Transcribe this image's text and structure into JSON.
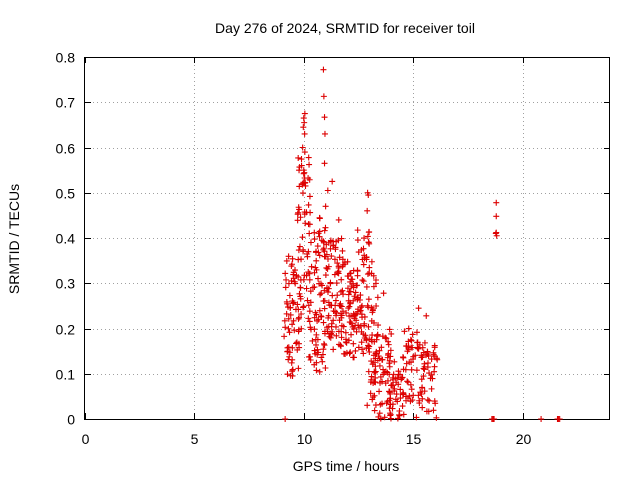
{
  "chart_data": {
    "type": "scatter",
    "title": "Day 276 of 2024, SRMTID for receiver toil",
    "xlabel": "GPS time / hours",
    "ylabel": "SRMTID / TECUs",
    "xlim": [
      0,
      24
    ],
    "ylim": [
      0,
      0.8
    ],
    "xticks": [
      0,
      5,
      10,
      15,
      20
    ],
    "xtick_labels": [
      "0",
      "5",
      "10",
      "15",
      "20"
    ],
    "yticks": [
      0,
      0.1,
      0.2,
      0.3,
      0.4,
      0.5,
      0.6,
      0.7,
      0.8
    ],
    "ytick_labels": [
      "0",
      "0.1",
      "0.2",
      "0.3",
      "0.4",
      "0.5",
      "0.6",
      "0.7",
      "0.8"
    ],
    "grid": true,
    "marker": "+",
    "point_color": "#dd0000",
    "seed": 276,
    "series": [
      {
        "name": "SRMTID",
        "points": [
          [
            9.15,
            0.0
          ],
          [
            18.6,
            0.0
          ],
          [
            18.65,
            0.0
          ],
          [
            18.7,
            0.0
          ],
          [
            20.85,
            0.0
          ],
          [
            21.6,
            0.0
          ],
          [
            21.65,
            0.0
          ],
          [
            21.7,
            0.0
          ],
          [
            18.8,
            0.478
          ],
          [
            18.8,
            0.448
          ],
          [
            18.78,
            0.41
          ],
          [
            18.82,
            0.405
          ],
          [
            18.8,
            0.412
          ],
          [
            10.9,
            0.772
          ],
          [
            10.92,
            0.713
          ],
          [
            10.95,
            0.667
          ],
          [
            10.97,
            0.63
          ],
          [
            10.95,
            0.565
          ],
          [
            11.1,
            0.505
          ],
          [
            11.3,
            0.525
          ],
          [
            11.0,
            0.47
          ],
          [
            10.05,
            0.675
          ],
          [
            10.0,
            0.665
          ],
          [
            10.02,
            0.655
          ],
          [
            9.98,
            0.645
          ],
          [
            10.04,
            0.63
          ],
          [
            9.95,
            0.6
          ],
          [
            10.05,
            0.59
          ],
          [
            9.9,
            0.56
          ],
          [
            10.0,
            0.55
          ],
          [
            9.95,
            0.52
          ],
          [
            10.08,
            0.515
          ],
          [
            12.92,
            0.5
          ],
          [
            12.95,
            0.495
          ],
          [
            12.9,
            0.46
          ],
          [
            15.25,
            0.245
          ],
          [
            15.6,
            0.228
          ],
          [
            13.65,
            0.278
          ],
          [
            11.6,
            0.44
          ]
        ],
        "clusters": [
          {
            "x_range": [
              9.1,
              9.9
            ],
            "y_range": [
              0.09,
              0.36
            ],
            "count": 70
          },
          {
            "x_range": [
              9.7,
              10.3
            ],
            "y_range": [
              0.2,
              0.58
            ],
            "count": 55
          },
          {
            "x_range": [
              10.2,
              11.0
            ],
            "y_range": [
              0.1,
              0.45
            ],
            "count": 80
          },
          {
            "x_range": [
              10.9,
              11.8
            ],
            "y_range": [
              0.15,
              0.4
            ],
            "count": 95
          },
          {
            "x_range": [
              11.8,
              12.5
            ],
            "y_range": [
              0.12,
              0.35
            ],
            "count": 65
          },
          {
            "x_range": [
              12.4,
              13.0
            ],
            "y_range": [
              0.14,
              0.42
            ],
            "count": 60
          },
          {
            "x_range": [
              12.9,
              13.4
            ],
            "y_range": [
              0.02,
              0.35
            ],
            "count": 40
          },
          {
            "x_range": [
              13.2,
              14.0
            ],
            "y_range": [
              0.0,
              0.2
            ],
            "count": 60
          },
          {
            "x_range": [
              13.9,
              14.6
            ],
            "y_range": [
              0.0,
              0.14
            ],
            "count": 50
          },
          {
            "x_range": [
              14.6,
              15.3
            ],
            "y_range": [
              0.0,
              0.2
            ],
            "count": 45
          },
          {
            "x_range": [
              15.3,
              16.1
            ],
            "y_range": [
              0.0,
              0.17
            ],
            "count": 50
          }
        ]
      }
    ]
  }
}
